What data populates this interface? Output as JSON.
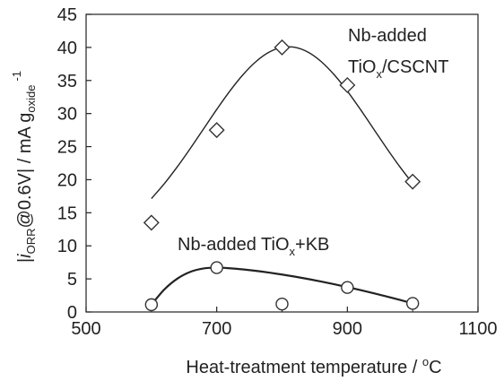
{
  "chart_data": {
    "type": "scatter",
    "xlabel": "Heat-treatment temperature / °C",
    "ylabel": "|i_ORR@0.6V| / mA g_oxide^-1",
    "xlim": [
      500,
      1100
    ],
    "ylim": [
      0,
      45
    ],
    "x_ticks": [
      500,
      700,
      900,
      1100
    ],
    "y_ticks": [
      0,
      5,
      10,
      15,
      20,
      25,
      30,
      35,
      40,
      45
    ],
    "grid": false,
    "series": [
      {
        "name": "Nb-added TiOx/CSCNT",
        "marker": "diamond",
        "x": [
          600,
          700,
          800,
          900,
          1000
        ],
        "y": [
          13.5,
          27.5,
          40.0,
          34.3,
          19.7
        ]
      },
      {
        "name": "Nb-added TiOx+KB",
        "marker": "circle",
        "x": [
          600,
          700,
          800,
          900,
          1000
        ],
        "y": [
          1.1,
          6.7,
          1.2,
          3.7,
          1.3
        ]
      }
    ],
    "annotations": {
      "cscnt_line1": "Nb-added",
      "cscnt_line2_main": "TiO",
      "cscnt_line2_sub": "x",
      "cscnt_line2_rest": "/CSCNT",
      "kb_main": "Nb-added TiO",
      "kb_sub": "x",
      "kb_rest": "+KB"
    },
    "axis_title_parts": {
      "y_bar_open": "|",
      "y_i": "i",
      "y_i_sub": "ORR",
      "y_mid": "@0.6V| / mA g",
      "y_g_sub": "oxide",
      "y_sup": "-1",
      "x_main": "Heat-treatment temperature / ",
      "x_deg": "o",
      "x_unit": "C"
    },
    "colors": {
      "axis": "#222222",
      "marker_stroke": "#333333",
      "curve": "#222222"
    }
  }
}
